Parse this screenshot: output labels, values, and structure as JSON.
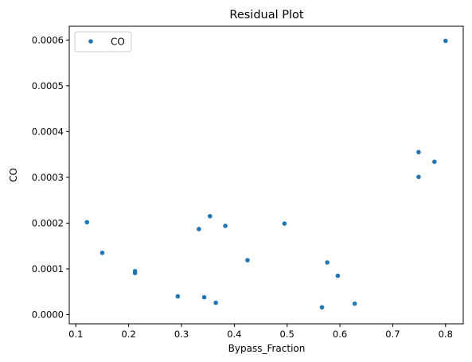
{
  "chart_data": {
    "type": "scatter",
    "title": "Residual Plot",
    "xlabel": "Bypass_Fraction",
    "ylabel": "CO",
    "xlim": [
      0.0875,
      0.8335
    ],
    "ylim": [
      -2e-05,
      0.00063
    ],
    "x_ticks": [
      "0.1",
      "0.2",
      "0.3",
      "0.4",
      "0.5",
      "0.6",
      "0.7",
      "0.8"
    ],
    "x_tick_values": [
      0.1,
      0.2,
      0.3,
      0.4,
      0.5,
      0.6,
      0.7,
      0.8
    ],
    "y_ticks": [
      "0.0000",
      "0.0001",
      "0.0002",
      "0.0003",
      "0.0004",
      "0.0005",
      "0.0006"
    ],
    "y_tick_values": [
      0.0,
      0.0001,
      0.0002,
      0.0003,
      0.0004,
      0.0005,
      0.0006
    ],
    "grid": false,
    "legend": {
      "position": "top-left",
      "entries": [
        "CO"
      ]
    },
    "series": [
      {
        "name": "CO",
        "color": "#1f77b4",
        "points": [
          {
            "x": 0.121,
            "y": 0.000202
          },
          {
            "x": 0.15,
            "y": 0.000135
          },
          {
            "x": 0.212,
            "y": 9.5e-05
          },
          {
            "x": 0.212,
            "y": 9.1e-05
          },
          {
            "x": 0.293,
            "y": 4e-05
          },
          {
            "x": 0.333,
            "y": 0.000187
          },
          {
            "x": 0.343,
            "y": 3.8e-05
          },
          {
            "x": 0.354,
            "y": 0.000215
          },
          {
            "x": 0.365,
            "y": 2.6e-05
          },
          {
            "x": 0.383,
            "y": 0.000194
          },
          {
            "x": 0.425,
            "y": 0.000119
          },
          {
            "x": 0.495,
            "y": 0.000199
          },
          {
            "x": 0.566,
            "y": 1.6e-05
          },
          {
            "x": 0.576,
            "y": 0.000114
          },
          {
            "x": 0.596,
            "y": 8.5e-05
          },
          {
            "x": 0.628,
            "y": 2.4e-05
          },
          {
            "x": 0.749,
            "y": 0.000355
          },
          {
            "x": 0.749,
            "y": 0.000301
          },
          {
            "x": 0.779,
            "y": 0.000334
          },
          {
            "x": 0.8,
            "y": 0.000598
          }
        ]
      }
    ]
  }
}
